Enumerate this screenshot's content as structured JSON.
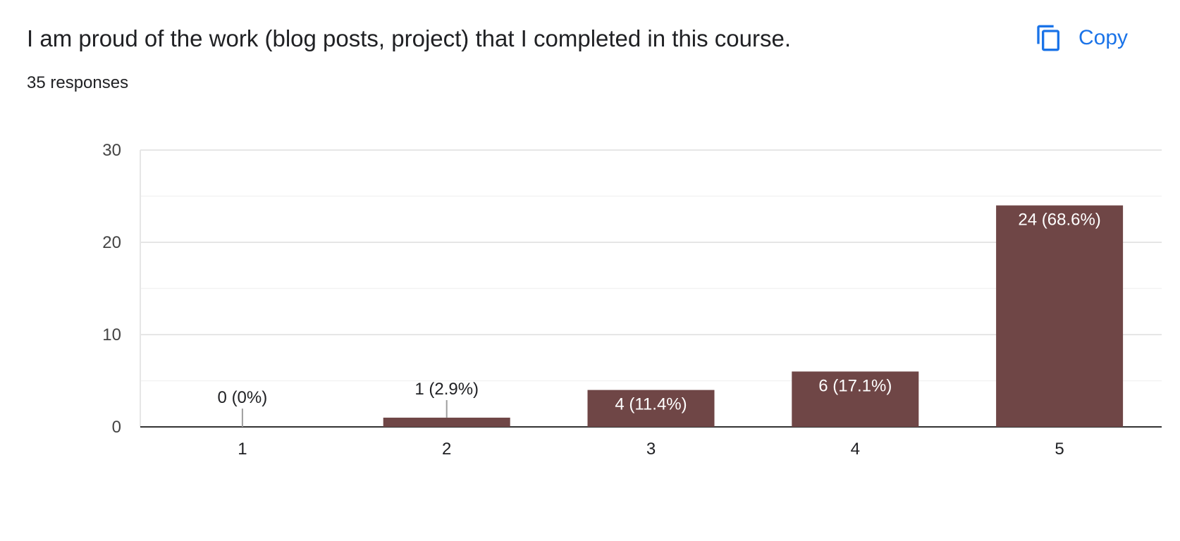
{
  "header": {
    "title": "I am proud of the work (blog posts, project) that I completed in this course.",
    "responses": "35 responses",
    "copy_label": "Copy"
  },
  "icons": {
    "copy": "copy-icon"
  },
  "colors": {
    "bar": "#6f4646",
    "accent": "#1a73e8",
    "grid_major": "#e6e6e6",
    "grid_minor": "#f3f3f3",
    "baseline": "#333333"
  },
  "chart_data": {
    "type": "bar",
    "title": "",
    "xlabel": "",
    "ylabel": "",
    "categories": [
      "1",
      "2",
      "3",
      "4",
      "5"
    ],
    "values": [
      0,
      1,
      4,
      6,
      24
    ],
    "data_labels": [
      "0 (0%)",
      "1 (2.9%)",
      "4 (11.4%)",
      "6 (17.1%)",
      "24 (68.6%)"
    ],
    "ylim": [
      0,
      30
    ],
    "yticks": [
      0,
      10,
      20,
      30
    ],
    "grid": true,
    "legend": "none"
  }
}
